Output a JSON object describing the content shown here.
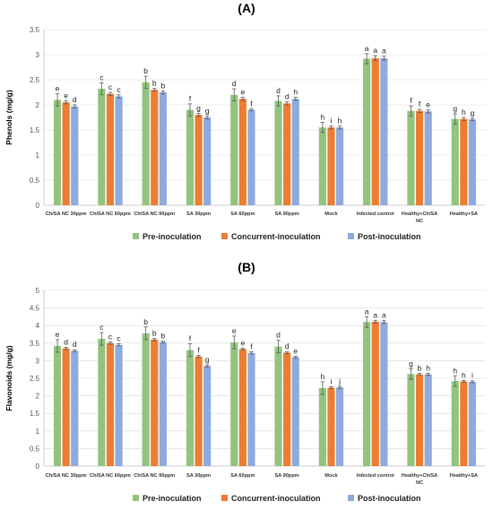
{
  "colors": {
    "pre": "#92C47D",
    "concurrent": "#ED7D31",
    "post": "#8FAADC",
    "axis": "#BFBFBF",
    "grid": "#D9D9D9",
    "error": "#595959"
  },
  "legend": [
    "Pre-inoculation",
    "Concurrent-inoculation",
    "Post-inoculation"
  ],
  "chart_data": [
    {
      "type": "bar",
      "title": "(A)",
      "ylabel": "Phenols (mg/g)",
      "ylim": [
        0,
        3.5
      ],
      "yticks": [
        "0",
        "0.5",
        "1",
        "1.5",
        "2",
        "2.5",
        "3",
        "3.5"
      ],
      "categories": [
        "Ch/SA NC 30ppm",
        "Ch/SA NC 60ppm",
        "Ch/SA NC 90ppm",
        "SA 30ppm",
        "SA 60ppm",
        "SA 90ppm",
        "Mock",
        "Infected control",
        "Healthy+Ch/SA NC",
        "Healthy+SA"
      ],
      "series": [
        {
          "name": "Pre-inoculation",
          "values": [
            2.1,
            2.32,
            2.45,
            1.9,
            2.2,
            2.08,
            1.55,
            2.92,
            1.88,
            1.72
          ],
          "errors": [
            0.12,
            0.12,
            0.12,
            0.12,
            0.12,
            0.1,
            0.1,
            0.1,
            0.1,
            0.1
          ],
          "labels": [
            "e",
            "c",
            "b",
            "f",
            "d",
            "d",
            "h",
            "a",
            "f",
            "g"
          ]
        },
        {
          "name": "Concurrent-inoculation",
          "values": [
            2.05,
            2.22,
            2.3,
            1.8,
            2.12,
            2.03,
            1.55,
            2.93,
            1.88,
            1.72
          ],
          "errors": [
            0.03,
            0.03,
            0.03,
            0.03,
            0.03,
            0.03,
            0.03,
            0.05,
            0.03,
            0.03
          ],
          "labels": [
            "e",
            "c",
            "b",
            "g",
            "e",
            "d",
            "i",
            "a",
            "f",
            "h"
          ]
        },
        {
          "name": "Post-inoculation",
          "values": [
            1.97,
            2.17,
            2.25,
            1.75,
            1.9,
            2.12,
            1.55,
            2.93,
            1.87,
            1.71
          ],
          "errors": [
            0.03,
            0.03,
            0.03,
            0.03,
            0.02,
            0.03,
            0.03,
            0.04,
            0.03,
            0.02
          ],
          "labels": [
            "d",
            "c",
            "b",
            "g",
            "f",
            "h",
            "h",
            "a",
            "e",
            "g"
          ]
        }
      ]
    },
    {
      "type": "bar",
      "title": "(B)",
      "ylabel": "Flavonoids (mg/g)",
      "ylim": [
        0,
        5
      ],
      "yticks": [
        "0",
        "0.5",
        "1",
        "1.5",
        "2",
        "2.5",
        "3",
        "3.5",
        "4",
        "4.5",
        "5"
      ],
      "categories": [
        "Ch/SA NC 30ppm",
        "Ch/SA NC 60ppm",
        "Ch/SA NC 90ppm",
        "SA 30ppm",
        "SA 60ppm",
        "SA 90ppm",
        "Mock",
        "Infected control",
        "Healthy+Ch/SA NC",
        "Healthy+SA"
      ],
      "series": [
        {
          "name": "Pre-inoculation",
          "values": [
            3.42,
            3.62,
            3.78,
            3.3,
            3.52,
            3.4,
            2.22,
            4.1,
            2.62,
            2.42
          ],
          "errors": [
            0.18,
            0.18,
            0.18,
            0.18,
            0.18,
            0.18,
            0.18,
            0.15,
            0.15,
            0.15
          ],
          "labels": [
            "e",
            "c",
            "b",
            "f",
            "e",
            "d",
            "h",
            "a",
            "g",
            "h"
          ]
        },
        {
          "name": "Concurrent-inoculation",
          "values": [
            3.35,
            3.5,
            3.6,
            3.12,
            3.33,
            3.23,
            2.23,
            4.11,
            2.61,
            2.41
          ],
          "errors": [
            0.03,
            0.03,
            0.03,
            0.03,
            0.03,
            0.03,
            0.03,
            0.04,
            0.03,
            0.03
          ],
          "labels": [
            "d",
            "c",
            "b",
            "f",
            "e",
            "d",
            "i",
            "a",
            "b",
            "h"
          ]
        },
        {
          "name": "Post-inoculation",
          "values": [
            3.28,
            3.45,
            3.53,
            2.85,
            3.22,
            3.1,
            2.24,
            4.1,
            2.61,
            2.4
          ],
          "errors": [
            0.03,
            0.03,
            0.03,
            0.03,
            0.03,
            0.03,
            0.03,
            0.04,
            0.03,
            0.03
          ],
          "labels": [
            "d",
            "c",
            "b",
            "g",
            "f",
            "e",
            "j",
            "a",
            "h",
            "i"
          ]
        }
      ]
    }
  ]
}
